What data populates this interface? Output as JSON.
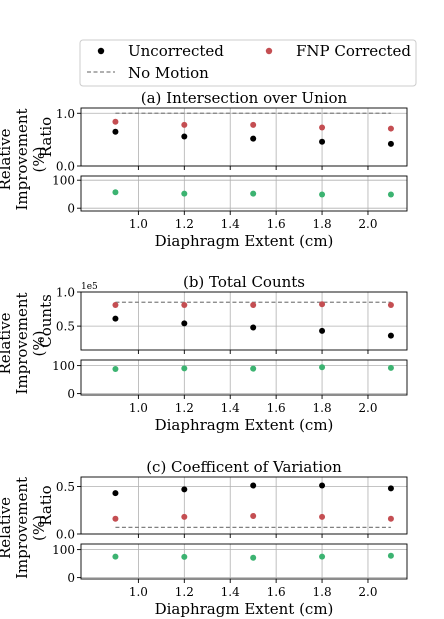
{
  "legend": {
    "placement": "top",
    "entries": [
      {
        "label": "Uncorrected",
        "color": "#000000",
        "kind": "marker"
      },
      {
        "label": "FNP Corrected",
        "color": "#c44e52",
        "kind": "marker"
      },
      {
        "label": "No Motion",
        "color": "#808080",
        "kind": "dashed-line"
      }
    ]
  },
  "colors": {
    "uncorrected": "#000000",
    "corrected": "#c44e52",
    "improvement": "#3cb371",
    "no_motion": "#808080",
    "grid": "#b0b0b0"
  },
  "chart_data": [
    {
      "type": "scatter",
      "title": "(a) Intersection over Union",
      "xlabel": "",
      "ylabel": "Ratio",
      "x": [
        0.9,
        1.2,
        1.5,
        1.8,
        2.1
      ],
      "xlim": [
        0.75,
        2.17
      ],
      "ylim": [
        0,
        1.1
      ],
      "yticks": [
        0.0,
        1.0
      ],
      "ytick_labels": [
        "0.0",
        "1.0"
      ],
      "reference_line": {
        "y": 1.0,
        "x_range": [
          0.9,
          2.1
        ],
        "name": "No Motion"
      },
      "grid": true,
      "series": [
        {
          "name": "Uncorrected",
          "values": [
            0.65,
            0.56,
            0.52,
            0.46,
            0.42
          ]
        },
        {
          "name": "FNP Corrected",
          "values": [
            0.84,
            0.78,
            0.78,
            0.73,
            0.71
          ]
        }
      ]
    },
    {
      "type": "scatter",
      "title": "",
      "xlabel": "Diaphragm Extent (cm)",
      "ylabel": "Relative Improvement (%)",
      "x": [
        0.9,
        1.2,
        1.5,
        1.8,
        2.1
      ],
      "xticks": [
        1.0,
        1.2,
        1.4,
        1.6,
        1.8,
        2.0
      ],
      "xtick_labels": [
        "1.0",
        "1.2",
        "1.4",
        "1.6",
        "1.8",
        "2.0"
      ],
      "xlim": [
        0.75,
        2.17
      ],
      "ylim": [
        -10,
        115
      ],
      "yticks": [
        0,
        100
      ],
      "ytick_labels": [
        "0",
        "100"
      ],
      "grid": true,
      "series": [
        {
          "values": [
            57,
            52,
            52,
            49,
            49
          ]
        }
      ]
    },
    {
      "type": "scatter",
      "title": "(b) Total Counts",
      "xlabel": "",
      "ylabel": "Counts",
      "offset_label": "1e5",
      "x": [
        0.9,
        1.2,
        1.5,
        1.8,
        2.1
      ],
      "xlim": [
        0.75,
        2.17
      ],
      "ylim": [
        0.15,
        1.0
      ],
      "yticks": [
        0.5,
        1.0
      ],
      "ytick_labels": [
        "0.5",
        "1.0"
      ],
      "reference_line": {
        "y": 0.85,
        "x_range": [
          0.9,
          2.1
        ],
        "name": "No Motion"
      },
      "grid": true,
      "series": [
        {
          "name": "Uncorrected",
          "values": [
            0.61,
            0.54,
            0.48,
            0.43,
            0.36
          ]
        },
        {
          "name": "FNP Corrected",
          "values": [
            0.81,
            0.81,
            0.81,
            0.82,
            0.81
          ]
        }
      ]
    },
    {
      "type": "scatter",
      "title": "",
      "xlabel": "Diaphragm Extent (cm)",
      "ylabel": "Relative Improvement (%)",
      "x": [
        0.9,
        1.2,
        1.5,
        1.8,
        2.1
      ],
      "xticks": [
        1.0,
        1.2,
        1.4,
        1.6,
        1.8,
        2.0
      ],
      "xtick_labels": [
        "1.0",
        "1.2",
        "1.4",
        "1.6",
        "1.8",
        "2.0"
      ],
      "xlim": [
        0.75,
        2.17
      ],
      "ylim": [
        -5,
        120
      ],
      "yticks": [
        0,
        100
      ],
      "ytick_labels": [
        "0",
        "100"
      ],
      "grid": true,
      "series": [
        {
          "values": [
            88,
            90,
            89,
            94,
            92
          ]
        }
      ]
    },
    {
      "type": "scatter",
      "title": "(c) Coefficent of Variation",
      "xlabel": "",
      "ylabel": "Ratio",
      "x": [
        0.9,
        1.2,
        1.5,
        1.8,
        2.1
      ],
      "xlim": [
        0.75,
        2.17
      ],
      "ylim": [
        0,
        0.6
      ],
      "yticks": [
        0.0,
        0.5
      ],
      "ytick_labels": [
        "0.0",
        "0.5"
      ],
      "reference_line": {
        "y": 0.07,
        "x_range": [
          0.9,
          2.1
        ],
        "name": "No Motion"
      },
      "grid": true,
      "series": [
        {
          "name": "Uncorrected",
          "values": [
            0.43,
            0.47,
            0.51,
            0.51,
            0.48
          ]
        },
        {
          "name": "FNP Corrected",
          "values": [
            0.16,
            0.18,
            0.19,
            0.18,
            0.16
          ]
        }
      ]
    },
    {
      "type": "scatter",
      "title": "",
      "xlabel": "Diaphragm Extent (cm)",
      "ylabel": "Relative Improvement (%)",
      "x": [
        0.9,
        1.2,
        1.5,
        1.8,
        2.1
      ],
      "xticks": [
        1.0,
        1.2,
        1.4,
        1.6,
        1.8,
        2.0
      ],
      "xtick_labels": [
        "1.0",
        "1.2",
        "1.4",
        "1.6",
        "1.8",
        "2.0"
      ],
      "xlim": [
        0.75,
        2.17
      ],
      "ylim": [
        -5,
        120
      ],
      "yticks": [
        0,
        100
      ],
      "ytick_labels": [
        "0",
        "100"
      ],
      "grid": true,
      "series": [
        {
          "values": [
            75,
            74,
            71,
            75,
            78
          ]
        }
      ]
    }
  ]
}
